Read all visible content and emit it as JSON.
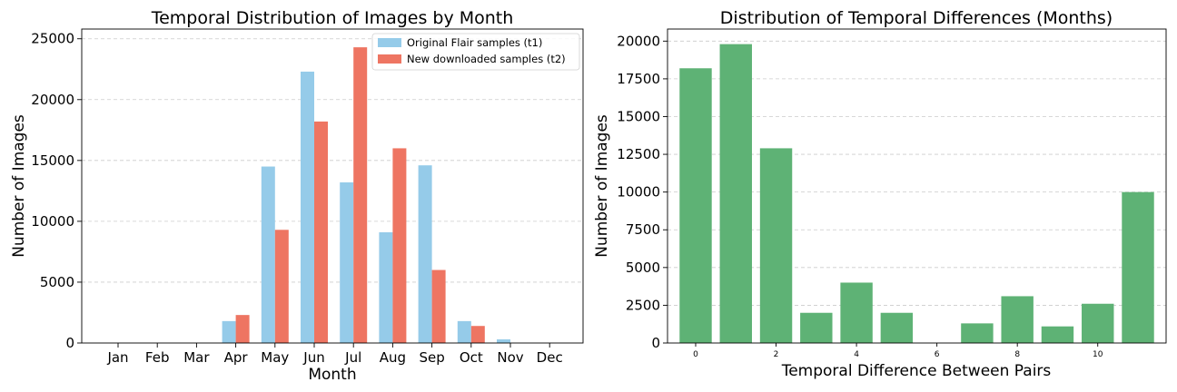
{
  "chart_data": [
    {
      "type": "bar",
      "title": "Temporal Distribution of Images by Month",
      "xlabel": "Month",
      "ylabel": "Number of Images",
      "categories": [
        "Jan",
        "Feb",
        "Mar",
        "Apr",
        "May",
        "Jun",
        "Jul",
        "Aug",
        "Sep",
        "Oct",
        "Nov",
        "Dec"
      ],
      "series": [
        {
          "name": "Original Flair samples (t1)",
          "color": "#95cbe9",
          "values": [
            0,
            0,
            0,
            1800,
            14500,
            22300,
            13200,
            9100,
            14600,
            1800,
            300,
            0
          ]
        },
        {
          "name": "New downloaded samples (t2)",
          "color": "#ee7562",
          "values": [
            0,
            0,
            0,
            2300,
            9300,
            18200,
            24300,
            16000,
            6000,
            1400,
            0,
            0
          ]
        }
      ],
      "ylim": [
        0,
        25800
      ],
      "yticks": [
        0,
        5000,
        10000,
        15000,
        20000,
        25000
      ],
      "grid": "y-dashed",
      "legend": "top-right"
    },
    {
      "type": "bar",
      "title": "Distribution of Temporal Differences (Months)",
      "xlabel": "Temporal Difference Between Pairs",
      "ylabel": "Number of Images",
      "x": [
        0,
        1,
        2,
        3,
        4,
        5,
        6,
        7,
        8,
        9,
        10,
        11
      ],
      "values": [
        18200,
        19800,
        12900,
        2000,
        4000,
        2000,
        0,
        1300,
        3100,
        1100,
        2600,
        10000
      ],
      "color": "#5eb275",
      "xticks": [
        0,
        2,
        4,
        6,
        8,
        10
      ],
      "xlim": [
        -0.7,
        11.7
      ],
      "ylim": [
        0,
        20800
      ],
      "yticks": [
        0,
        2500,
        5000,
        7500,
        10000,
        12500,
        15000,
        17500,
        20000
      ],
      "grid": "y-dashed"
    }
  ]
}
